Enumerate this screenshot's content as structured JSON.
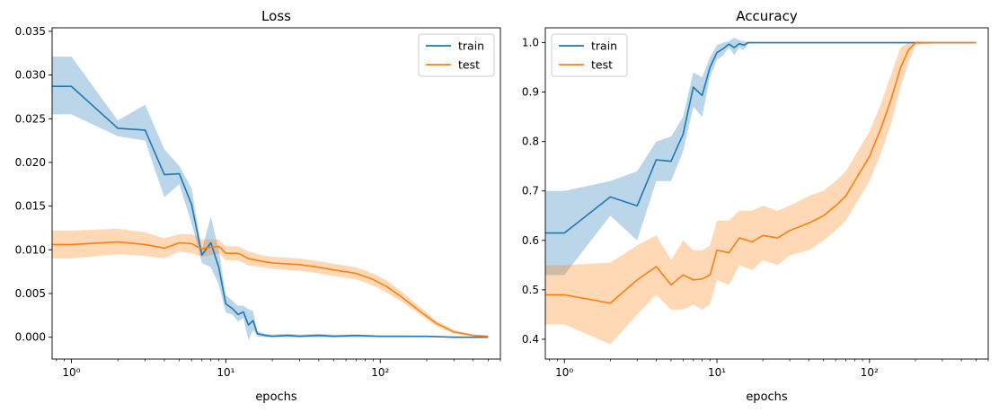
{
  "chart_data": [
    {
      "type": "line",
      "title": "Loss",
      "xlabel": "epochs",
      "ylabel": "",
      "xscale": "log",
      "xlim": [
        0.75,
        600
      ],
      "ylim": [
        -0.0025,
        0.0354
      ],
      "xticks": [
        {
          "value": 1,
          "label": "10⁰"
        },
        {
          "value": 10,
          "label": "10¹"
        },
        {
          "value": 100,
          "label": "10²"
        }
      ],
      "yticks": [
        {
          "value": 0,
          "label": "0.000"
        },
        {
          "value": 0.005,
          "label": "0.005"
        },
        {
          "value": 0.01,
          "label": "0.010"
        },
        {
          "value": 0.015,
          "label": "0.015"
        },
        {
          "value": 0.02,
          "label": "0.020"
        },
        {
          "value": 0.025,
          "label": "0.025"
        },
        {
          "value": 0.03,
          "label": "0.030"
        },
        {
          "value": 0.035,
          "label": "0.035"
        }
      ],
      "grid": false,
      "legend_position": "top-right",
      "series": [
        {
          "name": "train",
          "color": "#1f77b4",
          "band_color": "#1f77b4",
          "points": [
            [
              0.75,
              0.0287,
              0.0255,
              0.0321
            ],
            [
              1,
              0.0287,
              0.0255,
              0.0321
            ],
            [
              2,
              0.0239,
              0.023,
              0.0248
            ],
            [
              3,
              0.0237,
              0.0225,
              0.0266
            ],
            [
              4,
              0.0186,
              0.016,
              0.0215
            ],
            [
              5,
              0.0187,
              0.0175,
              0.0196
            ],
            [
              6,
              0.0152,
              0.013,
              0.017
            ],
            [
              7,
              0.0094,
              0.0085,
              0.01
            ],
            [
              8,
              0.0108,
              0.008,
              0.0138
            ],
            [
              9,
              0.008,
              0.006,
              0.01
            ],
            [
              10,
              0.0038,
              0.0028,
              0.0048
            ],
            [
              11,
              0.0033,
              0.0026,
              0.0042
            ],
            [
              12,
              0.0026,
              0.0018,
              0.0036
            ],
            [
              13,
              0.0029,
              0.0022,
              0.0036
            ],
            [
              14,
              0.0014,
              -0.0003,
              0.0032
            ],
            [
              15,
              0.0019,
              0.0008,
              0.003
            ],
            [
              16,
              0.0004,
              0.0001,
              0.0007
            ],
            [
              18,
              0.0002,
              0.0,
              0.0004
            ],
            [
              20,
              0.0001,
              0.0,
              0.0003
            ],
            [
              25,
              0.0002,
              0.0,
              0.0004
            ],
            [
              30,
              0.0001,
              0.0,
              0.0003
            ],
            [
              40,
              0.0002,
              0.0,
              0.0004
            ],
            [
              50,
              0.0001,
              0.0,
              0.0003
            ],
            [
              70,
              0.0002,
              0.0,
              0.0003
            ],
            [
              100,
              0.0001,
              0.0,
              0.0002
            ],
            [
              150,
              0.0001,
              0.0,
              0.0002
            ],
            [
              200,
              0.0001,
              0.0,
              0.0001
            ],
            [
              300,
              0.0,
              0.0,
              0.0001
            ],
            [
              500,
              0.0,
              0.0,
              0.0
            ]
          ]
        },
        {
          "name": "test",
          "color": "#ff7f0e",
          "band_color": "#ff7f0e",
          "points": [
            [
              0.75,
              0.0106,
              0.009,
              0.0122
            ],
            [
              1,
              0.0106,
              0.009,
              0.0122
            ],
            [
              2,
              0.0109,
              0.0095,
              0.0124
            ],
            [
              3,
              0.0106,
              0.0093,
              0.012
            ],
            [
              4,
              0.0102,
              0.009,
              0.0113
            ],
            [
              5,
              0.0108,
              0.0098,
              0.0118
            ],
            [
              6,
              0.0107,
              0.0096,
              0.0118
            ],
            [
              7,
              0.0101,
              0.0092,
              0.0112
            ],
            [
              8,
              0.0103,
              0.0094,
              0.0112
            ],
            [
              9,
              0.0104,
              0.0096,
              0.0112
            ],
            [
              10,
              0.0096,
              0.0088,
              0.0104
            ],
            [
              12,
              0.0096,
              0.0088,
              0.0104
            ],
            [
              14,
              0.009,
              0.0082,
              0.0098
            ],
            [
              17,
              0.0087,
              0.008,
              0.0094
            ],
            [
              20,
              0.0085,
              0.0078,
              0.0092
            ],
            [
              30,
              0.0083,
              0.0076,
              0.009
            ],
            [
              40,
              0.008,
              0.0073,
              0.0087
            ],
            [
              50,
              0.0077,
              0.007,
              0.0084
            ],
            [
              70,
              0.0073,
              0.0066,
              0.008
            ],
            [
              90,
              0.0066,
              0.0059,
              0.0073
            ],
            [
              110,
              0.0058,
              0.0051,
              0.0065
            ],
            [
              140,
              0.0045,
              0.004,
              0.0051
            ],
            [
              180,
              0.003,
              0.0026,
              0.0035
            ],
            [
              230,
              0.0016,
              0.0013,
              0.0019
            ],
            [
              300,
              0.0006,
              0.0004,
              0.0008
            ],
            [
              400,
              0.0002,
              0.0001,
              0.0003
            ],
            [
              500,
              0.0001,
              0.0,
              0.0002
            ]
          ]
        }
      ]
    },
    {
      "type": "line",
      "title": "Accuracy",
      "xlabel": "epochs",
      "ylabel": "",
      "xscale": "log",
      "xlim": [
        0.75,
        600
      ],
      "ylim": [
        0.36,
        1.03
      ],
      "xticks": [
        {
          "value": 1,
          "label": "10⁰"
        },
        {
          "value": 10,
          "label": "10¹"
        },
        {
          "value": 100,
          "label": "10²"
        }
      ],
      "yticks": [
        {
          "value": 0.4,
          "label": "0.4"
        },
        {
          "value": 0.5,
          "label": "0.5"
        },
        {
          "value": 0.6,
          "label": "0.6"
        },
        {
          "value": 0.7,
          "label": "0.7"
        },
        {
          "value": 0.8,
          "label": "0.8"
        },
        {
          "value": 0.9,
          "label": "0.9"
        },
        {
          "value": 1.0,
          "label": "1.0"
        }
      ],
      "grid": false,
      "legend_position": "top-left",
      "series": [
        {
          "name": "train",
          "color": "#1f77b4",
          "band_color": "#1f77b4",
          "points": [
            [
              0.75,
              0.615,
              0.53,
              0.7
            ],
            [
              1,
              0.615,
              0.53,
              0.7
            ],
            [
              2,
              0.688,
              0.65,
              0.72
            ],
            [
              3,
              0.67,
              0.6,
              0.74
            ],
            [
              4,
              0.763,
              0.72,
              0.8
            ],
            [
              5,
              0.76,
              0.72,
              0.81
            ],
            [
              6,
              0.815,
              0.78,
              0.85
            ],
            [
              7,
              0.91,
              0.87,
              0.94
            ],
            [
              8,
              0.893,
              0.85,
              0.93
            ],
            [
              9,
              0.95,
              0.93,
              0.97
            ],
            [
              10,
              0.98,
              0.965,
              0.995
            ],
            [
              11,
              0.988,
              0.975,
              1.0
            ],
            [
              12,
              0.997,
              0.99,
              1.003
            ],
            [
              13,
              0.99,
              0.975,
              1.01
            ],
            [
              14,
              0.998,
              0.99,
              1.005
            ],
            [
              15,
              0.995,
              0.985,
              1.003
            ],
            [
              16,
              1.0,
              0.998,
              1.002
            ],
            [
              20,
              1.0,
              1.0,
              1.0
            ],
            [
              50,
              1.0,
              1.0,
              1.0
            ],
            [
              100,
              1.0,
              1.0,
              1.0
            ],
            [
              500,
              1.0,
              1.0,
              1.0
            ]
          ]
        },
        {
          "name": "test",
          "color": "#ff7f0e",
          "band_color": "#ff7f0e",
          "points": [
            [
              0.75,
              0.49,
              0.43,
              0.55
            ],
            [
              1,
              0.49,
              0.43,
              0.55
            ],
            [
              2,
              0.473,
              0.39,
              0.555
            ],
            [
              3,
              0.52,
              0.45,
              0.59
            ],
            [
              4,
              0.547,
              0.49,
              0.61
            ],
            [
              5,
              0.51,
              0.46,
              0.56
            ],
            [
              6,
              0.53,
              0.46,
              0.6
            ],
            [
              7,
              0.52,
              0.47,
              0.58
            ],
            [
              8,
              0.522,
              0.46,
              0.58
            ],
            [
              9,
              0.53,
              0.47,
              0.59
            ],
            [
              10,
              0.58,
              0.52,
              0.64
            ],
            [
              12,
              0.575,
              0.51,
              0.64
            ],
            [
              14,
              0.605,
              0.55,
              0.66
            ],
            [
              17,
              0.597,
              0.54,
              0.66
            ],
            [
              20,
              0.61,
              0.56,
              0.67
            ],
            [
              25,
              0.605,
              0.55,
              0.66
            ],
            [
              30,
              0.62,
              0.57,
              0.67
            ],
            [
              40,
              0.635,
              0.58,
              0.69
            ],
            [
              50,
              0.65,
              0.6,
              0.7
            ],
            [
              60,
              0.67,
              0.62,
              0.72
            ],
            [
              70,
              0.69,
              0.64,
              0.74
            ],
            [
              80,
              0.72,
              0.67,
              0.77
            ],
            [
              100,
              0.77,
              0.72,
              0.82
            ],
            [
              120,
              0.83,
              0.78,
              0.88
            ],
            [
              140,
              0.89,
              0.84,
              0.94
            ],
            [
              160,
              0.95,
              0.91,
              0.99
            ],
            [
              180,
              0.985,
              0.96,
              1.0
            ],
            [
              200,
              1.0,
              0.995,
              1.003
            ],
            [
              300,
              1.0,
              1.0,
              1.0
            ],
            [
              500,
              1.0,
              1.0,
              1.0
            ]
          ]
        }
      ]
    }
  ]
}
